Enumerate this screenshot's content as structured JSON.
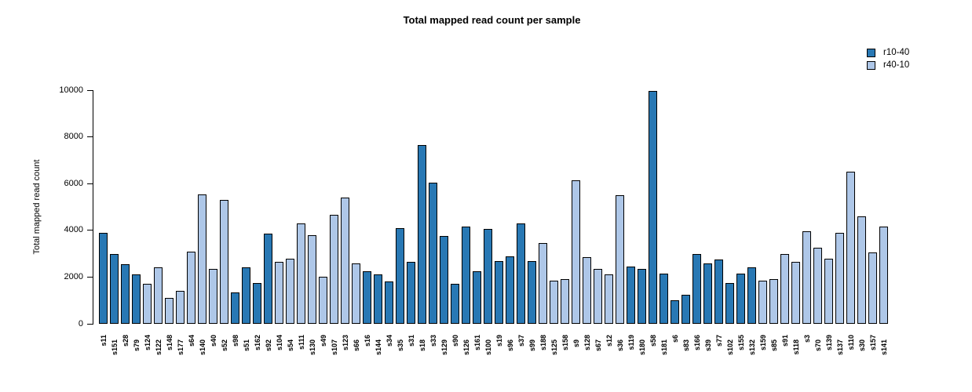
{
  "title": "Total mapped read count per sample",
  "y_axis": {
    "label": "Total mapped read count",
    "tick_labels": [
      "0",
      "2000",
      "4000",
      "6000",
      "8000",
      "10000"
    ]
  },
  "legend": {
    "items": [
      {
        "label": "r10-40",
        "color": "#2878b4"
      },
      {
        "label": "r40-10",
        "color": "#aec7e8"
      }
    ]
  },
  "chart_data": {
    "type": "bar",
    "title": "Total mapped read count per sample",
    "xlabel": "",
    "ylabel": "Total mapped read count",
    "ylim": [
      0,
      10000
    ],
    "yticks": [
      0,
      2000,
      4000,
      6000,
      8000,
      10000
    ],
    "grid": false,
    "legend_position": "top-right",
    "series_colors": {
      "r10-40": "#2878b4",
      "r40-10": "#aec7e8"
    },
    "bars": [
      {
        "sample": "s11",
        "value": 3900,
        "series": "r10-40"
      },
      {
        "sample": "s151",
        "value": 3000,
        "series": "r10-40"
      },
      {
        "sample": "s28",
        "value": 2550,
        "series": "r10-40"
      },
      {
        "sample": "s79",
        "value": 2100,
        "series": "r10-40"
      },
      {
        "sample": "s124",
        "value": 1700,
        "series": "r40-10"
      },
      {
        "sample": "s122",
        "value": 2400,
        "series": "r40-10"
      },
      {
        "sample": "s148",
        "value": 1100,
        "series": "r40-10"
      },
      {
        "sample": "s177",
        "value": 1400,
        "series": "r40-10"
      },
      {
        "sample": "s64",
        "value": 3100,
        "series": "r40-10"
      },
      {
        "sample": "s140",
        "value": 5550,
        "series": "r40-10"
      },
      {
        "sample": "s40",
        "value": 2350,
        "series": "r40-10"
      },
      {
        "sample": "s52",
        "value": 5300,
        "series": "r40-10"
      },
      {
        "sample": "s98",
        "value": 1350,
        "series": "r10-40"
      },
      {
        "sample": "s51",
        "value": 2400,
        "series": "r10-40"
      },
      {
        "sample": "s162",
        "value": 1750,
        "series": "r10-40"
      },
      {
        "sample": "s92",
        "value": 3850,
        "series": "r10-40"
      },
      {
        "sample": "s104",
        "value": 2650,
        "series": "r40-10"
      },
      {
        "sample": "s54",
        "value": 2800,
        "series": "r40-10"
      },
      {
        "sample": "s111",
        "value": 4300,
        "series": "r40-10"
      },
      {
        "sample": "s130",
        "value": 3800,
        "series": "r40-10"
      },
      {
        "sample": "s49",
        "value": 2000,
        "series": "r40-10"
      },
      {
        "sample": "s107",
        "value": 4650,
        "series": "r40-10"
      },
      {
        "sample": "s123",
        "value": 5400,
        "series": "r40-10"
      },
      {
        "sample": "s66",
        "value": 2600,
        "series": "r40-10"
      },
      {
        "sample": "s16",
        "value": 2250,
        "series": "r10-40"
      },
      {
        "sample": "s144",
        "value": 2100,
        "series": "r10-40"
      },
      {
        "sample": "s34",
        "value": 1800,
        "series": "r10-40"
      },
      {
        "sample": "s35",
        "value": 4100,
        "series": "r10-40"
      },
      {
        "sample": "s31",
        "value": 2650,
        "series": "r10-40"
      },
      {
        "sample": "s18",
        "value": 7650,
        "series": "r10-40"
      },
      {
        "sample": "s33",
        "value": 6050,
        "series": "r10-40"
      },
      {
        "sample": "s129",
        "value": 3750,
        "series": "r10-40"
      },
      {
        "sample": "s90",
        "value": 1700,
        "series": "r10-40"
      },
      {
        "sample": "s126",
        "value": 4150,
        "series": "r10-40"
      },
      {
        "sample": "s161",
        "value": 2250,
        "series": "r10-40"
      },
      {
        "sample": "s100",
        "value": 4050,
        "series": "r10-40"
      },
      {
        "sample": "s19",
        "value": 2700,
        "series": "r10-40"
      },
      {
        "sample": "s96",
        "value": 2900,
        "series": "r10-40"
      },
      {
        "sample": "s37",
        "value": 4300,
        "series": "r10-40"
      },
      {
        "sample": "s99",
        "value": 2700,
        "series": "r10-40"
      },
      {
        "sample": "s188",
        "value": 3450,
        "series": "r40-10"
      },
      {
        "sample": "s125",
        "value": 1850,
        "series": "r40-10"
      },
      {
        "sample": "s158",
        "value": 1900,
        "series": "r40-10"
      },
      {
        "sample": "s9",
        "value": 6150,
        "series": "r40-10"
      },
      {
        "sample": "s128",
        "value": 2850,
        "series": "r40-10"
      },
      {
        "sample": "s67",
        "value": 2350,
        "series": "r40-10"
      },
      {
        "sample": "s12",
        "value": 2100,
        "series": "r40-10"
      },
      {
        "sample": "s36",
        "value": 5500,
        "series": "r40-10"
      },
      {
        "sample": "s119",
        "value": 2450,
        "series": "r10-40"
      },
      {
        "sample": "s180",
        "value": 2350,
        "series": "r10-40"
      },
      {
        "sample": "s58",
        "value": 9950,
        "series": "r10-40"
      },
      {
        "sample": "s181",
        "value": 2150,
        "series": "r10-40"
      },
      {
        "sample": "s6",
        "value": 1000,
        "series": "r10-40"
      },
      {
        "sample": "s83",
        "value": 1250,
        "series": "r10-40"
      },
      {
        "sample": "s166",
        "value": 3000,
        "series": "r10-40"
      },
      {
        "sample": "s39",
        "value": 2600,
        "series": "r10-40"
      },
      {
        "sample": "s77",
        "value": 2750,
        "series": "r10-40"
      },
      {
        "sample": "s102",
        "value": 1750,
        "series": "r10-40"
      },
      {
        "sample": "s155",
        "value": 2150,
        "series": "r10-40"
      },
      {
        "sample": "s132",
        "value": 2400,
        "series": "r10-40"
      },
      {
        "sample": "s159",
        "value": 1850,
        "series": "r40-10"
      },
      {
        "sample": "s85",
        "value": 1900,
        "series": "r40-10"
      },
      {
        "sample": "s91",
        "value": 3000,
        "series": "r40-10"
      },
      {
        "sample": "s118",
        "value": 2650,
        "series": "r40-10"
      },
      {
        "sample": "s3",
        "value": 3950,
        "series": "r40-10"
      },
      {
        "sample": "s70",
        "value": 3250,
        "series": "r40-10"
      },
      {
        "sample": "s139",
        "value": 2800,
        "series": "r40-10"
      },
      {
        "sample": "s137",
        "value": 3900,
        "series": "r40-10"
      },
      {
        "sample": "s110",
        "value": 6500,
        "series": "r40-10"
      },
      {
        "sample": "s30",
        "value": 4600,
        "series": "r40-10"
      },
      {
        "sample": "s157",
        "value": 3050,
        "series": "r40-10"
      },
      {
        "sample": "s141",
        "value": 4150,
        "series": "r40-10"
      }
    ]
  }
}
